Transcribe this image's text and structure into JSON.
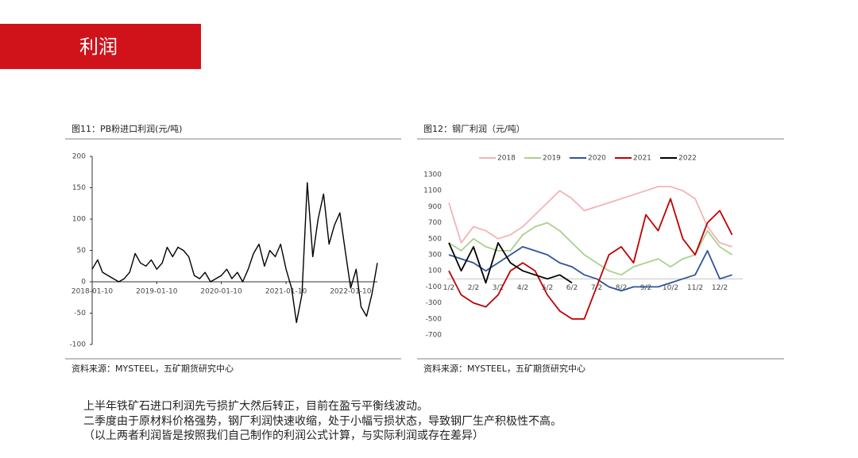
{
  "header": {
    "title": "利润"
  },
  "chart_data": [
    {
      "type": "line",
      "title": "图11：PB粉进口利润(元/吨)",
      "source": "资料来源：MYSTEEL，五矿期货研究中心",
      "color": "#000000",
      "x": [
        "2018-01-10",
        "2018-02-10",
        "2018-03-10",
        "2018-04-10",
        "2018-05-10",
        "2018-06-10",
        "2018-07-10",
        "2018-08-10",
        "2018-09-10",
        "2018-10-10",
        "2018-11-10",
        "2018-12-10",
        "2019-01-10",
        "2019-02-10",
        "2019-03-10",
        "2019-04-10",
        "2019-05-10",
        "2019-06-10",
        "2019-07-10",
        "2019-08-10",
        "2019-09-10",
        "2019-10-10",
        "2019-11-10",
        "2019-12-10",
        "2020-01-10",
        "2020-02-10",
        "2020-03-10",
        "2020-04-10",
        "2020-05-10",
        "2020-06-10",
        "2020-07-10",
        "2020-08-10",
        "2020-09-10",
        "2020-10-10",
        "2020-11-10",
        "2020-12-10",
        "2021-01-10",
        "2021-02-10",
        "2021-03-10",
        "2021-04-10",
        "2021-05-10",
        "2021-06-10",
        "2021-07-10",
        "2021-08-10",
        "2021-09-10",
        "2021-10-10",
        "2021-11-10",
        "2021-12-10",
        "2022-01-10",
        "2022-02-10",
        "2022-03-10",
        "2022-04-10",
        "2022-05-10",
        "2022-06-10"
      ],
      "values": [
        20,
        35,
        15,
        10,
        5,
        0,
        5,
        15,
        45,
        30,
        25,
        35,
        20,
        30,
        55,
        40,
        55,
        50,
        40,
        10,
        5,
        15,
        0,
        5,
        10,
        20,
        5,
        15,
        0,
        20,
        45,
        60,
        25,
        50,
        40,
        60,
        20,
        -10,
        -65,
        -20,
        158,
        40,
        100,
        140,
        60,
        90,
        110,
        50,
        -10,
        20,
        -40,
        -55,
        -20,
        30
      ],
      "xlim": [
        "2018-01-10",
        "2022-06-10"
      ],
      "xticks": [
        "2018-01-10",
        "2019-01-10",
        "2020-01-10",
        "2021-01-10",
        "2022-01-10"
      ],
      "ylim": [
        -100,
        200
      ],
      "yticks": [
        -100,
        -50,
        0,
        50,
        100,
        150,
        200
      ]
    },
    {
      "type": "line",
      "title": "图12：钢厂利润（元/吨）",
      "source": "资料来源：MYSTEEL，五矿期货研究中心",
      "categories": [
        "1/2",
        null,
        "2/2",
        null,
        "3/2",
        null,
        "4/2",
        null,
        "5/2",
        null,
        "6/2",
        null,
        "7/2",
        null,
        "8/2",
        null,
        "9/2",
        null,
        "10/2",
        null,
        "11/2",
        null,
        "12/2",
        null
      ],
      "series": [
        {
          "name": "2018",
          "color": "#f4b3b5",
          "values": [
            950,
            450,
            650,
            600,
            500,
            550,
            650,
            800,
            950,
            1100,
            1000,
            850,
            900,
            950,
            1000,
            1050,
            1100,
            1150,
            1150,
            1100,
            1000,
            650,
            450,
            400
          ]
        },
        {
          "name": "2019",
          "color": "#a9d18e",
          "values": [
            450,
            350,
            500,
            400,
            350,
            350,
            550,
            650,
            700,
            600,
            450,
            300,
            200,
            100,
            50,
            150,
            200,
            250,
            150,
            250,
            300,
            600,
            400,
            300
          ]
        },
        {
          "name": "2020",
          "color": "#2f5597",
          "values": [
            300,
            250,
            200,
            100,
            200,
            300,
            400,
            350,
            300,
            200,
            150,
            50,
            0,
            -100,
            -150,
            -100,
            -100,
            -100,
            -50,
            0,
            50,
            350,
            0,
            50
          ]
        },
        {
          "name": "2021",
          "color": "#c00000",
          "values": [
            100,
            -200,
            -300,
            -350,
            -200,
            100,
            200,
            100,
            -200,
            -400,
            -500,
            -500,
            -100,
            300,
            400,
            200,
            800,
            600,
            1000,
            500,
            300,
            700,
            850,
            550
          ]
        },
        {
          "name": "2022",
          "color": "#000000",
          "values": [
            450,
            100,
            400,
            -50,
            450,
            200,
            100,
            50,
            0,
            50,
            -50,
            null,
            null,
            null,
            null,
            null,
            null,
            null,
            null,
            null,
            null,
            null,
            null,
            null
          ]
        }
      ],
      "ylim": [
        -700,
        1300
      ],
      "yticks": [
        -700,
        -500,
        -300,
        -100,
        100,
        300,
        500,
        700,
        900,
        1100,
        1300
      ]
    }
  ],
  "body": {
    "paragraphs": [
      "上半年铁矿石进口利润先亏损扩大然后转正，目前在盈亏平衡线波动。",
      "二季度由于原材料价格强势，钢厂利润快速收缩，处于小幅亏损状态，导致钢厂生产积极性不高。",
      "（以上两者利润皆是按照我们自己制作的利润公式计算，与实际利润或存在差异）"
    ]
  }
}
